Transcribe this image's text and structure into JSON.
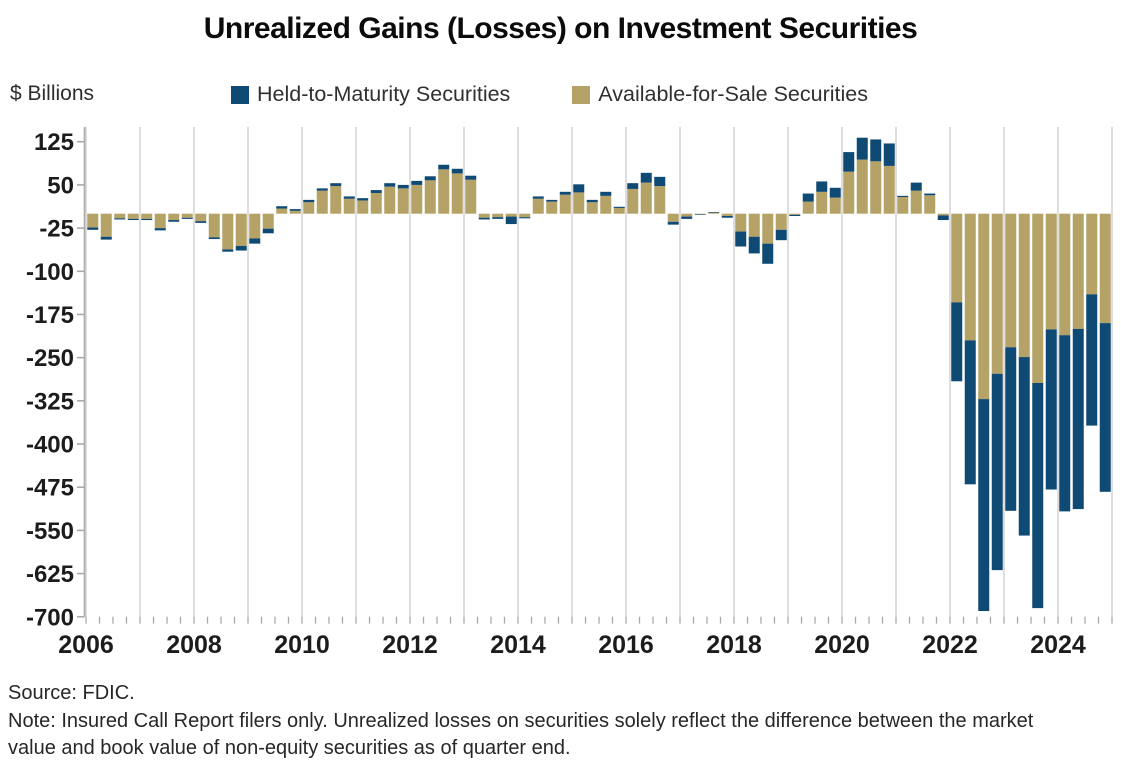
{
  "title": "Unrealized Gains (Losses) on Investment Securities",
  "units_label": "$ Billions",
  "legend": [
    {
      "label": "Held-to-Maturity Securities",
      "color": "#0e4a74"
    },
    {
      "label": "Available-for-Sale Securities",
      "color": "#b5a267"
    }
  ],
  "source": "Source: FDIC.",
  "note": "Note: Insured Call Report filers only. Unrealized losses on securities solely reflect the difference between the market value and book value of non-equity securities as of quarter end.",
  "chart_data": {
    "type": "bar",
    "stacked": true,
    "title": "Unrealized Gains (Losses) on Investment Securities",
    "ylabel": "$ Billions",
    "xlabel": "",
    "ylim": [
      -700,
      150
    ],
    "y_ticks": [
      125,
      50,
      -25,
      -100,
      -175,
      -250,
      -325,
      -400,
      -475,
      -550,
      -625,
      -700
    ],
    "x_tick_labels": [
      "2006",
      "2008",
      "2010",
      "2012",
      "2014",
      "2016",
      "2018",
      "2020",
      "2022",
      "2024"
    ],
    "x_gridlines": "every year 2006-2025",
    "grid": "vertical only",
    "legend_position": "top",
    "categories": [
      "2006Q1",
      "2006Q2",
      "2006Q3",
      "2006Q4",
      "2007Q1",
      "2007Q2",
      "2007Q3",
      "2007Q4",
      "2008Q1",
      "2008Q2",
      "2008Q3",
      "2008Q4",
      "2009Q1",
      "2009Q2",
      "2009Q3",
      "2009Q4",
      "2010Q1",
      "2010Q2",
      "2010Q3",
      "2010Q4",
      "2011Q1",
      "2011Q2",
      "2011Q3",
      "2011Q4",
      "2012Q1",
      "2012Q2",
      "2012Q3",
      "2012Q4",
      "2013Q1",
      "2013Q2",
      "2013Q3",
      "2013Q4",
      "2014Q1",
      "2014Q2",
      "2014Q3",
      "2014Q4",
      "2015Q1",
      "2015Q2",
      "2015Q3",
      "2015Q4",
      "2016Q1",
      "2016Q2",
      "2016Q3",
      "2016Q4",
      "2017Q1",
      "2017Q2",
      "2017Q3",
      "2017Q4",
      "2018Q1",
      "2018Q2",
      "2018Q3",
      "2018Q4",
      "2019Q1",
      "2019Q2",
      "2019Q3",
      "2019Q4",
      "2020Q1",
      "2020Q2",
      "2020Q3",
      "2020Q4",
      "2021Q1",
      "2021Q2",
      "2021Q3",
      "2021Q4",
      "2022Q1",
      "2022Q2",
      "2022Q3",
      "2022Q4",
      "2023Q1",
      "2023Q2",
      "2023Q3",
      "2023Q4",
      "2024Q1",
      "2024Q2",
      "2024Q3",
      "2024Q4"
    ],
    "series": [
      {
        "name": "Available-for-Sale Securities",
        "color": "#b5a267",
        "values": [
          -24,
          -40,
          -8,
          -9,
          -9,
          -25,
          -11,
          -7,
          -13,
          -41,
          -62,
          -56,
          -43,
          -26,
          9,
          5,
          20,
          40,
          48,
          26,
          23,
          36,
          47,
          44,
          50,
          58,
          77,
          70,
          59,
          -7,
          -6,
          -5,
          -6,
          26,
          21,
          33,
          37,
          20,
          31,
          10,
          43,
          54,
          48,
          -14,
          -5,
          -1,
          2,
          -4,
          -31,
          -40,
          -52,
          -28,
          -2,
          21,
          38,
          28,
          73,
          94,
          91,
          83,
          29,
          40,
          32,
          -3,
          -154,
          -220,
          -322,
          -278,
          -232,
          -249,
          -294,
          -201,
          -211,
          -200,
          -140,
          -190
        ]
      },
      {
        "name": "Held-to-Maturity Securities",
        "color": "#0e4a74",
        "values": [
          -4,
          -5,
          -2,
          -2,
          -2,
          -4,
          -3,
          -2,
          -3,
          -3,
          -4,
          -8,
          -9,
          -8,
          4,
          3,
          4,
          4,
          5,
          4,
          4,
          5,
          6,
          6,
          7,
          7,
          8,
          8,
          7,
          -3,
          -3,
          -13,
          -2,
          4,
          3,
          5,
          14,
          4,
          7,
          2,
          10,
          17,
          16,
          -5,
          -4,
          -1,
          1,
          -3,
          -26,
          -29,
          -35,
          -18,
          -2,
          14,
          18,
          17,
          34,
          38,
          38,
          39,
          2,
          14,
          3,
          -8,
          -137,
          -250,
          -368,
          -341,
          -284,
          -310,
          -391,
          -278,
          -306,
          -313,
          -228,
          -293
        ]
      }
    ]
  }
}
